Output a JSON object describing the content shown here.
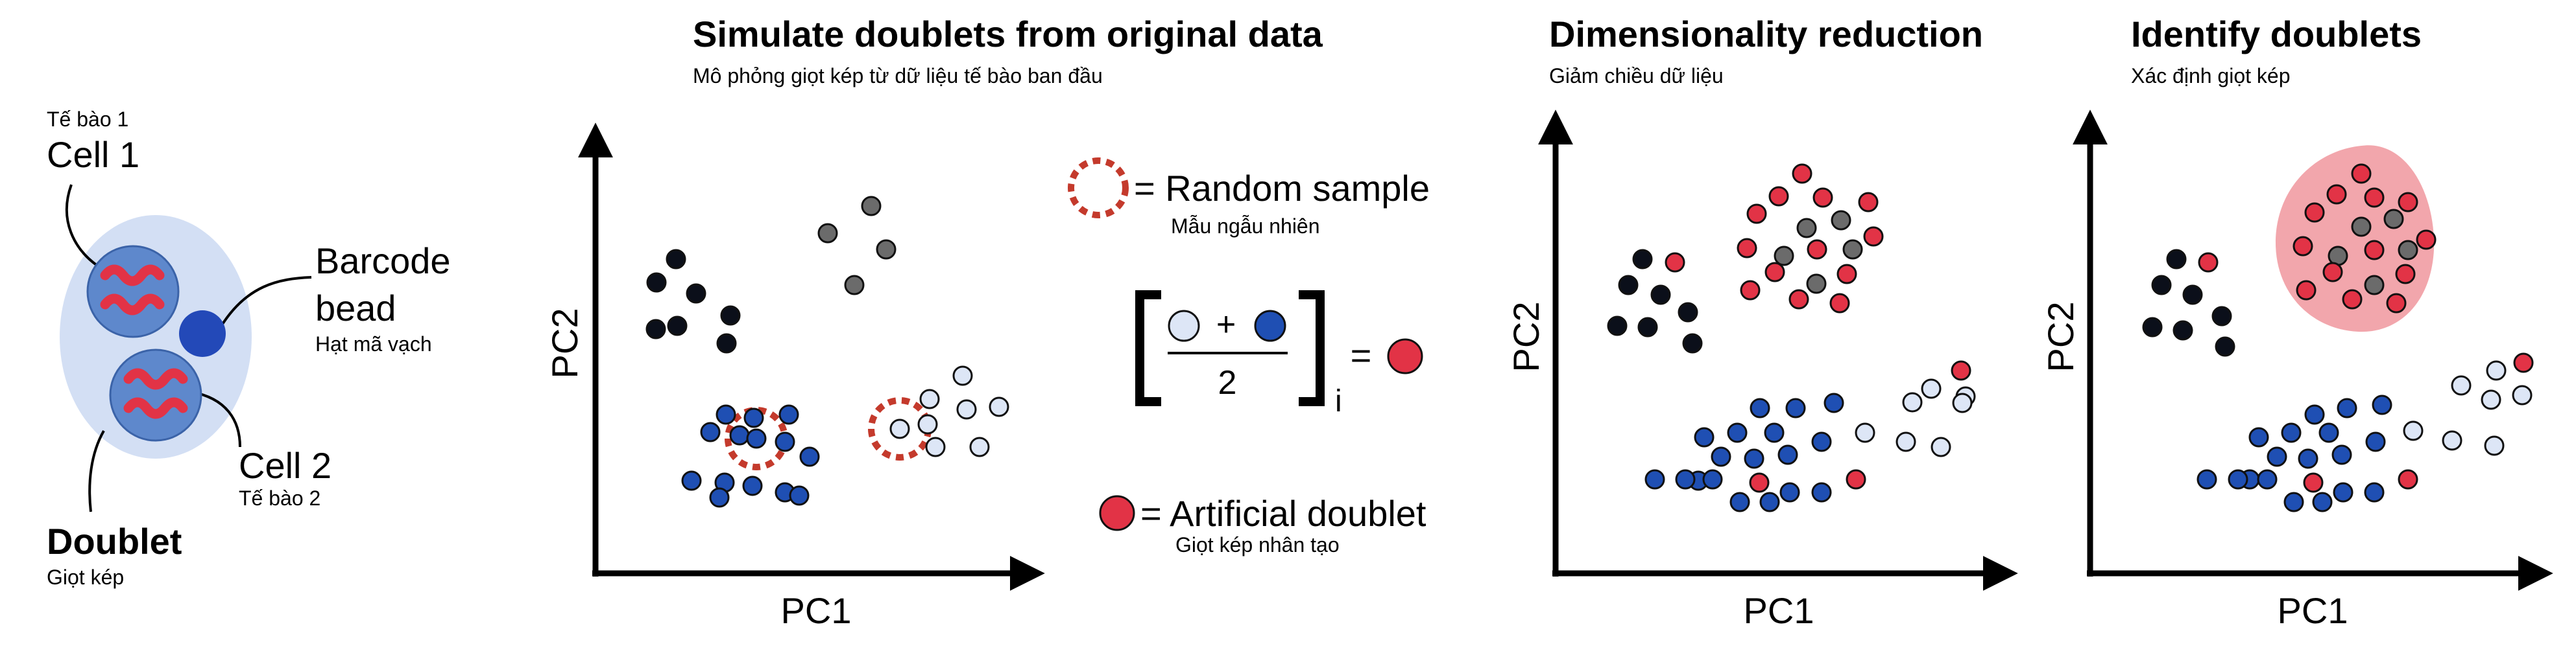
{
  "colors": {
    "black_cluster": "#0b0f1a",
    "gray_cluster": "#6b6b6b",
    "blue_cluster": "#1f4fb3",
    "light_cluster": "#dde6f6",
    "doublet": "#e23346",
    "cell_halo": "#d3dff4",
    "cell_body": "#5e88cc",
    "bead": "#2349b8",
    "random_ring": "#c43a2c",
    "identified_region": "#f0969e"
  },
  "left": {
    "cell1_sub": "Tế bào 1",
    "cell1": "Cell 1",
    "bead": "Barcode bead",
    "bead_sub": "Hạt mã vạch",
    "cell2": "Cell 2",
    "cell2_sub": "Tế bào 2",
    "doublet": "Doublet",
    "doublet_sub": "Giọt kép"
  },
  "panels": [
    {
      "title": "Simulate doublets from original data",
      "subtitle": "Mô phỏng giọt kép từ dữ liệu tế bào ban đầu",
      "xlabel": "PC1",
      "ylabel": "PC2"
    },
    {
      "title": "Dimensionality reduction",
      "subtitle": "Giảm chiều dữ liệu",
      "xlabel": "PC1",
      "ylabel": "PC2"
    },
    {
      "title": "Identify doublets",
      "subtitle": "Xác định giọt kép",
      "xlabel": "PC1",
      "ylabel": "PC2"
    }
  ],
  "legend": {
    "random_sample": "= Random sample",
    "random_sample_sub": "Mẫu ngẫu nhiên",
    "plus": "+",
    "two": "2",
    "index": "i",
    "equals": "=",
    "artificial_doublet": "= Artificial doublet",
    "artificial_doublet_sub": "Giọt kép nhân tạo"
  }
}
